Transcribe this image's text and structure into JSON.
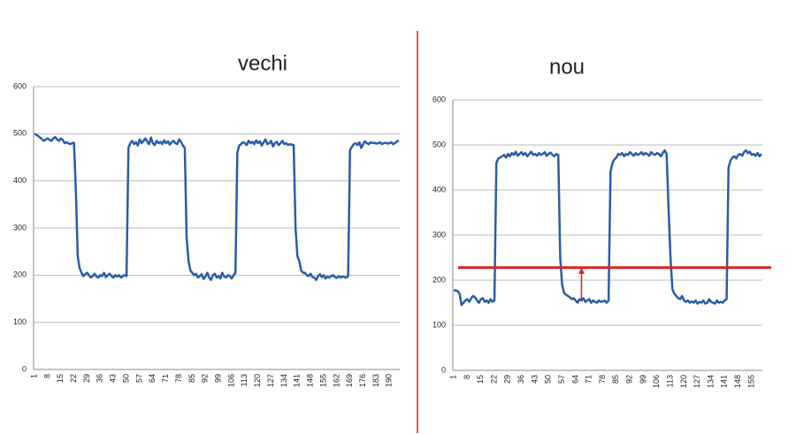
{
  "chart_data": [
    {
      "type": "line",
      "title": "vechi",
      "color": "#2a5ca8",
      "grid": true,
      "ylim": [
        0,
        600
      ],
      "yticks": [
        0,
        100,
        200,
        300,
        400,
        500,
        600
      ],
      "categories": [
        "1",
        null,
        null,
        null,
        null,
        null,
        null,
        "8",
        null,
        null,
        null,
        null,
        null,
        null,
        "15",
        null,
        null,
        null,
        null,
        null,
        null,
        "22",
        null,
        null,
        null,
        null,
        null,
        null,
        "29",
        null,
        null,
        null,
        null,
        null,
        null,
        "36",
        null,
        null,
        null,
        null,
        null,
        null,
        "43",
        null,
        null,
        null,
        null,
        null,
        null,
        "50",
        null,
        null,
        null,
        null,
        null,
        null,
        "57",
        null,
        null,
        null,
        null,
        null,
        null,
        "64",
        null,
        null,
        null,
        null,
        null,
        null,
        "71",
        null,
        null,
        null,
        null,
        null,
        null,
        "78",
        null,
        null,
        null,
        null,
        null,
        null,
        "85",
        null,
        null,
        null,
        null,
        null,
        null,
        "92",
        null,
        null,
        null,
        null,
        null,
        null,
        "99",
        null,
        null,
        null,
        null,
        null,
        null,
        "106",
        null,
        null,
        null,
        null,
        null,
        null,
        "113",
        null,
        null,
        null,
        null,
        null,
        null,
        "120",
        null,
        null,
        null,
        null,
        null,
        null,
        "127",
        null,
        null,
        null,
        null,
        null,
        null,
        "134",
        null,
        null,
        null,
        null,
        null,
        null,
        "141",
        null,
        null,
        null,
        null,
        null,
        null,
        "148",
        null,
        null,
        null,
        null,
        null,
        null,
        "155",
        null,
        null,
        null,
        null,
        null,
        null,
        "162",
        null,
        null,
        null,
        null,
        null,
        null,
        "169",
        null,
        null,
        null,
        null,
        null,
        null,
        "176",
        null,
        null,
        null,
        null,
        null,
        null,
        "183",
        null,
        null,
        null,
        null,
        null,
        null,
        "190",
        null,
        null,
        null,
        null,
        null
      ],
      "values": [
        500,
        498,
        495,
        492,
        488,
        485,
        488,
        490,
        487,
        485,
        490,
        493,
        488,
        485,
        490,
        487,
        480,
        482,
        480,
        478,
        480,
        481,
        380,
        240,
        215,
        205,
        198,
        202,
        205,
        200,
        195,
        198,
        203,
        197,
        195,
        200,
        198,
        205,
        196,
        200,
        203,
        198,
        195,
        200,
        197,
        200,
        195,
        198,
        200,
        198,
        470,
        480,
        485,
        478,
        482,
        475,
        488,
        480,
        485,
        490,
        483,
        478,
        492,
        480,
        476,
        485,
        480,
        483,
        478,
        486,
        480,
        484,
        477,
        482,
        485,
        480,
        478,
        488,
        483,
        475,
        470,
        280,
        230,
        210,
        205,
        200,
        203,
        195,
        198,
        202,
        192,
        197,
        205,
        195,
        190,
        200,
        203,
        195,
        198,
        193,
        205,
        197,
        195,
        200,
        198,
        193,
        200,
        205,
        460,
        475,
        478,
        482,
        480,
        476,
        485,
        480,
        483,
        478,
        486,
        480,
        484,
        475,
        482,
        488,
        478,
        480,
        485,
        473,
        480,
        483,
        476,
        480,
        485,
        478,
        480,
        476,
        478,
        477,
        476,
        300,
        240,
        230,
        210,
        205,
        205,
        200,
        198,
        203,
        196,
        195,
        190,
        198,
        202,
        196,
        200,
        193,
        197,
        195,
        198,
        200,
        196,
        194,
        198,
        195,
        197,
        196,
        195,
        198,
        465,
        472,
        478,
        480,
        476,
        482,
        470,
        478,
        484,
        480,
        478,
        482,
        480,
        481,
        479,
        480,
        482,
        478,
        480,
        481,
        479,
        480,
        482,
        478,
        480,
        484,
        485
      ]
    },
    {
      "type": "line",
      "title": "nou",
      "color": "#2a5ca8",
      "grid": true,
      "ylim": [
        0,
        600
      ],
      "yticks": [
        0,
        100,
        200,
        300,
        400,
        500,
        600
      ],
      "threshold": {
        "value": 228,
        "color": "#e02020"
      },
      "arrow": {
        "x": 67,
        "from": 155,
        "to": 228
      },
      "categories": [
        "1",
        null,
        null,
        null,
        null,
        null,
        null,
        "8",
        null,
        null,
        null,
        null,
        null,
        null,
        "15",
        null,
        null,
        null,
        null,
        null,
        null,
        "22",
        null,
        null,
        null,
        null,
        null,
        null,
        "29",
        null,
        null,
        null,
        null,
        null,
        null,
        "36",
        null,
        null,
        null,
        null,
        null,
        null,
        "43",
        null,
        null,
        null,
        null,
        null,
        null,
        "50",
        null,
        null,
        null,
        null,
        null,
        null,
        "57",
        null,
        null,
        null,
        null,
        null,
        null,
        "64",
        null,
        null,
        null,
        null,
        null,
        null,
        "71",
        null,
        null,
        null,
        null,
        null,
        null,
        "78",
        null,
        null,
        null,
        null,
        null,
        null,
        "85",
        null,
        null,
        null,
        null,
        null,
        null,
        "92",
        null,
        null,
        null,
        null,
        null,
        null,
        "99",
        null,
        null,
        null,
        null,
        null,
        null,
        "106",
        null,
        null,
        null,
        null,
        null,
        null,
        "113",
        null,
        null,
        null,
        null,
        null,
        null,
        "120",
        null,
        null,
        null,
        null,
        null,
        null,
        "127",
        null,
        null,
        null,
        null,
        null,
        null,
        "134",
        null,
        null,
        null,
        null,
        null,
        null,
        "141",
        null,
        null,
        null,
        null,
        null,
        null,
        "148",
        null,
        null,
        null,
        null,
        null,
        null,
        "155",
        null,
        null,
        null,
        null,
        null
      ],
      "values": [
        178,
        177,
        176,
        170,
        145,
        150,
        155,
        158,
        152,
        160,
        165,
        162,
        155,
        150,
        158,
        160,
        152,
        155,
        150,
        158,
        152,
        155,
        460,
        470,
        472,
        475,
        478,
        472,
        480,
        475,
        482,
        478,
        485,
        476,
        480,
        484,
        478,
        482,
        475,
        480,
        485,
        478,
        480,
        476,
        482,
        478,
        480,
        484,
        476,
        480,
        483,
        478,
        475,
        480,
        478,
        250,
        190,
        172,
        168,
        165,
        162,
        158,
        160,
        155,
        150,
        158,
        155,
        160,
        152,
        155,
        158,
        150,
        155,
        152,
        150,
        155,
        152,
        153,
        155,
        150,
        155,
        440,
        460,
        468,
        472,
        480,
        478,
        482,
        475,
        480,
        478,
        484,
        480,
        476,
        482,
        478,
        480,
        484,
        478,
        482,
        480,
        476,
        484,
        480,
        478,
        482,
        480,
        475,
        482,
        488,
        480,
        360,
        250,
        180,
        170,
        165,
        160,
        158,
        165,
        155,
        152,
        155,
        150,
        153,
        150,
        155,
        148,
        152,
        150,
        155,
        148,
        150,
        158,
        152,
        150,
        148,
        155,
        150,
        152,
        150,
        155,
        158,
        450,
        465,
        472,
        475,
        470,
        478,
        480,
        476,
        484,
        488,
        482,
        485,
        478,
        480,
        476,
        482,
        475,
        480
      ]
    }
  ]
}
